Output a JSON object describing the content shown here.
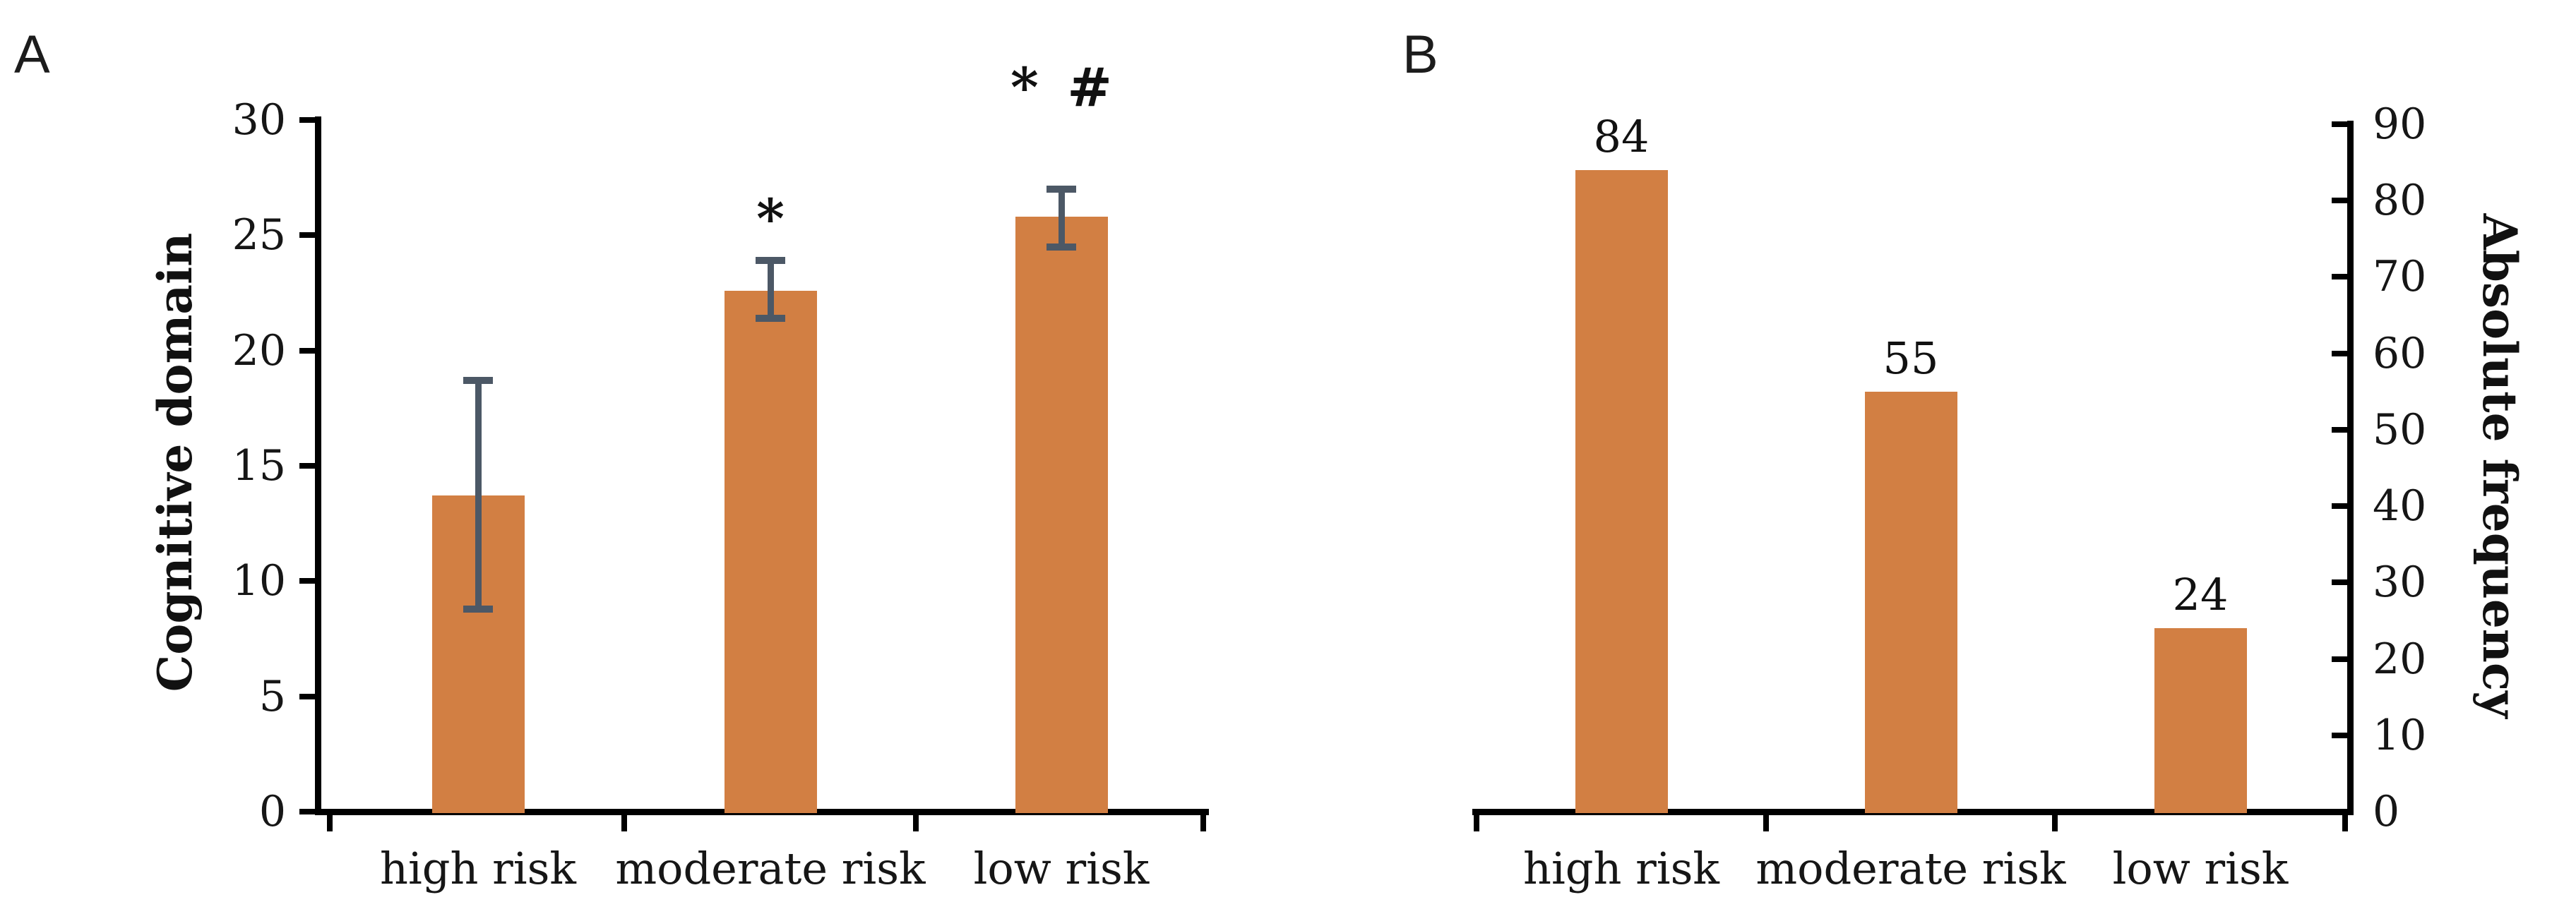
{
  "figure": {
    "background": "#ffffff",
    "colors": {
      "bar_fill": "#D27F43",
      "error_bar": "#4C5866",
      "axis": "#000000",
      "text": "#161616"
    }
  },
  "chart_data": [
    {
      "type": "bar",
      "panel_label": "A",
      "ylabel": "Cognitive domain",
      "xlabel": "",
      "axis_side": "left",
      "categories": [
        "high risk",
        "moderate risk",
        "low risk"
      ],
      "values": [
        13.7,
        22.6,
        25.8
      ],
      "error_low": [
        8.8,
        21.4,
        24.5
      ],
      "error_high": [
        18.7,
        23.9,
        27.0
      ],
      "annotations": [
        "",
        "*",
        "* #"
      ],
      "ylim": [
        0,
        30
      ],
      "yticks": [
        0,
        5,
        10,
        15,
        20,
        25,
        30
      ],
      "grid": false,
      "legend": false,
      "show_value_labels": false
    },
    {
      "type": "bar",
      "panel_label": "B",
      "ylabel": "Absolute frequency",
      "xlabel": "",
      "axis_side": "right",
      "categories": [
        "high risk",
        "moderate risk",
        "low risk"
      ],
      "values": [
        84,
        55,
        24
      ],
      "value_labels": [
        "84",
        "55",
        "24"
      ],
      "ylim": [
        0,
        90
      ],
      "yticks": [
        0,
        10,
        20,
        30,
        40,
        50,
        60,
        70,
        80,
        90
      ],
      "grid": false,
      "legend": false,
      "show_value_labels": true
    }
  ]
}
